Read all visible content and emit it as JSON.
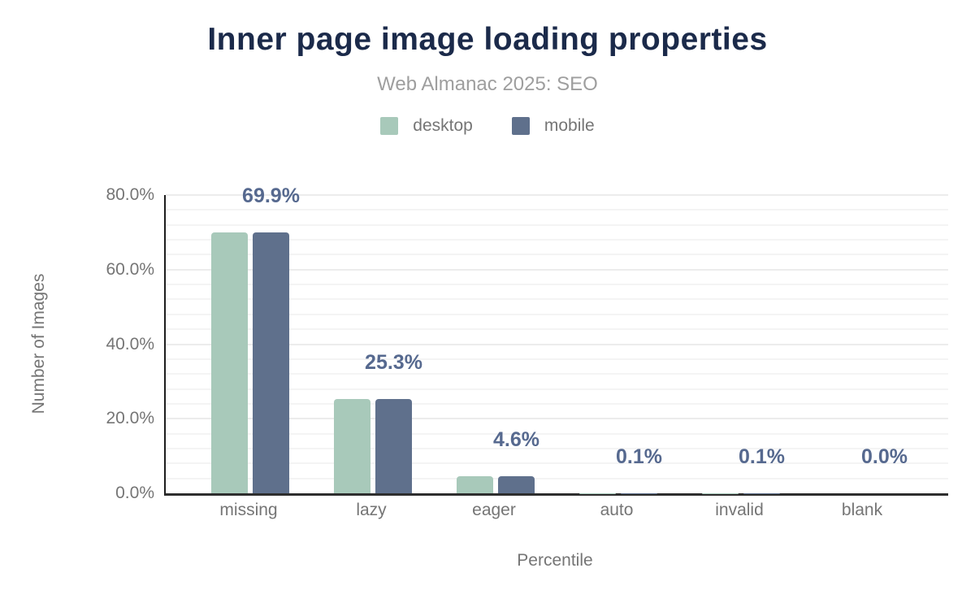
{
  "header": {
    "title": "Inner page image loading properties",
    "subtitle": "Web Almanac 2025: SEO"
  },
  "colors": {
    "title": "#1b2a4a",
    "subtitle_text": "#9e9e9e",
    "axis_text": "#757575",
    "data_label_text": "#56698f",
    "desktop_series": "#a8c9ba",
    "mobile_series": "#5f708c",
    "axis_line": "#1d1d1d",
    "gridline": "#f0f0f0",
    "background": "#ffffff"
  },
  "chart_data": {
    "type": "bar",
    "title": "Inner page image loading properties",
    "subtitle": "Web Almanac 2025: SEO",
    "categories": [
      "missing",
      "lazy",
      "eager",
      "auto",
      "invalid",
      "blank"
    ],
    "series": [
      {
        "name": "desktop",
        "color": "#a8c9ba",
        "values": [
          69.9,
          25.3,
          4.6,
          0.1,
          0.1,
          0.0
        ]
      },
      {
        "name": "mobile",
        "color": "#5f708c",
        "values": [
          69.9,
          25.3,
          4.6,
          0.1,
          0.1,
          0.0
        ]
      }
    ],
    "data_labels": [
      "69.9%",
      "25.3%",
      "4.6%",
      "0.1%",
      "0.1%",
      "0.0%"
    ],
    "xlabel": "Percentile",
    "ylabel": "Number of Images",
    "ylim": [
      0,
      80
    ],
    "yticks": [
      {
        "value": 0,
        "label": "0.0%"
      },
      {
        "value": 20,
        "label": "20.0%"
      },
      {
        "value": 40,
        "label": "40.0%"
      },
      {
        "value": 60,
        "label": "60.0%"
      },
      {
        "value": 80,
        "label": "80.0%"
      }
    ],
    "minor_grid_step": 4,
    "major_grid_step": 20,
    "grid": true,
    "legend_position": "top"
  }
}
